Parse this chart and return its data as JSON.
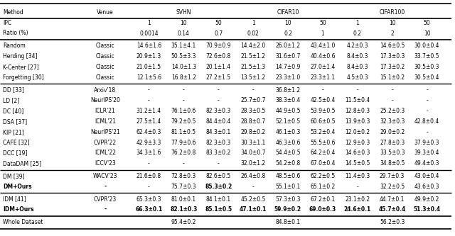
{
  "col_headers": [
    "Method",
    "Venue",
    "SVHN",
    "CIFAR10",
    "CIFAR100"
  ],
  "ipc_vals": [
    "1",
    "10",
    "50",
    "1",
    "10",
    "50",
    "1",
    "10",
    "50"
  ],
  "ratio_vals": [
    "0.0014",
    "0.14",
    "0.7",
    "0.02",
    "0.2",
    "1",
    "0.2",
    "2",
    "10"
  ],
  "rows": [
    [
      "Random",
      "Classic",
      "14.6±1.6",
      "35.1±4.1",
      "70.9±0.9",
      "14.4±2.0",
      "26.0±1.2",
      "43.4±1.0",
      "4.2±0.3",
      "14.6±0.5",
      "30.0±0.4"
    ],
    [
      "Herding [34]",
      "Classic",
      "20.9±1.3",
      "50.5±3.3",
      "72.6±0.8",
      "21.5±1.2",
      "31.6±0.7",
      "40.4±0.6",
      "8.4±0.3",
      "17.3±0.3",
      "33.7±0.5"
    ],
    [
      "K-Center [27]",
      "Classic",
      "21.0±1.5",
      "14.0±1.3",
      "20.1±1.4",
      "21.5±1.3",
      "14.7±0.9",
      "27.0±1.4",
      "8.4±0.3",
      "17.3±0.2",
      "30.5±0.3"
    ],
    [
      "Forgetting [30]",
      "Classic",
      "12.1±5.6",
      "16.8±1.2",
      "27.2±1.5",
      "13.5±1.2",
      "23.3±1.0",
      "23.3±1.1",
      "4.5±0.3",
      "15.1±0.2",
      "30.5±0.4"
    ],
    [
      "DD [33]",
      "Arxiv'18",
      "-",
      "-",
      "-",
      "-",
      "36.8±1.2",
      "-",
      "-",
      "-",
      "-"
    ],
    [
      "LD [2]",
      "NeurIPS'20",
      "-",
      "-",
      "-",
      "25.7±0.7",
      "38.3±0.4",
      "42.5±0.4",
      "11.5±0.4",
      "-",
      "-"
    ],
    [
      "DC [40]",
      "ICLR'21",
      "31.2±1.4",
      "76.1±0.6",
      "82.3±0.3",
      "28.3±0.5",
      "44.9±0.5",
      "53.9±0.5",
      "12.8±0.3",
      "25.2±0.3",
      "-"
    ],
    [
      "DSA [37]",
      "ICML'21",
      "27.5±1.4",
      "79.2±0.5",
      "84.4±0.4",
      "28.8±0.7",
      "52.1±0.5",
      "60.6±0.5",
      "13.9±0.3",
      "32.3±0.3",
      "42.8±0.4"
    ],
    [
      "KIP [21]",
      "NeurIPS'21",
      "62.4±0.3",
      "81.1±0.5",
      "84.3±0.1",
      "29.8±0.2",
      "46.1±0.3",
      "53.2±0.4",
      "12.0±0.2",
      "29.0±0.2",
      "-"
    ],
    [
      "CAFE [32]",
      "CVPR'22",
      "42.9±3.3",
      "77.9±0.6",
      "82.3±0.3",
      "30.3±1.1",
      "46.3±0.6",
      "55.5±0.6",
      "12.9±0.3",
      "27.8±0.3",
      "37.9±0.3"
    ],
    [
      "DCC [19]",
      "ICML'22",
      "34.3±1.6",
      "76.2±0.8",
      "83.3±0.2",
      "34.0±0.7",
      "54.4±0.5",
      "64.2±0.4",
      "14.6±0.3",
      "33.5±0.3",
      "39.3±0.4"
    ],
    [
      "DataDAM [25]",
      "ICCV'23",
      "-",
      "-",
      "-",
      "32.0±1.2",
      "54.2±0.8",
      "67.0±0.4",
      "14.5±0.5",
      "34.8±0.5",
      "49.4±0.3"
    ],
    [
      "DM [39]",
      "WACV'23",
      "21.6±0.8",
      "72.8±0.3",
      "82.6±0.5",
      "26.4±0.8",
      "48.5±0.6",
      "62.2±0.5",
      "11.4±0.3",
      "29.7±0.3",
      "43.0±0.4"
    ],
    [
      "DM+Ours",
      "-",
      "-",
      "75.7±0.3",
      "85.3±0.2",
      "-",
      "55.1±0.1",
      "65.1±0.2",
      "-",
      "32.2±0.5",
      "43.6±0.3"
    ],
    [
      "IDM [41]",
      "CVPR'23",
      "65.3±0.3",
      "81.0±0.1",
      "84.1±0.1",
      "45.2±0.5",
      "57.3±0.3",
      "67.2±0.1",
      "23.1±0.2",
      "44.7±0.1",
      "49.9±0.2"
    ],
    [
      "IDM+Ours",
      "-",
      "66.3±0.1",
      "82.1±0.3",
      "85.1±0.5",
      "47.1±0.1",
      "59.9±0.2",
      "69.0±0.3",
      "24.6±0.1",
      "45.7±0.4",
      "51.3±0.4"
    ]
  ],
  "whole_dataset": [
    "95.4±0.2",
    "84.8±0.1",
    "56.2±0.3"
  ],
  "bg_color": "#ffffff",
  "fontsize": 5.5,
  "bold_dm_ours_col": 4,
  "bold_idm_ours_cols": [
    2,
    3,
    4,
    5,
    6,
    7,
    8,
    9,
    10
  ]
}
